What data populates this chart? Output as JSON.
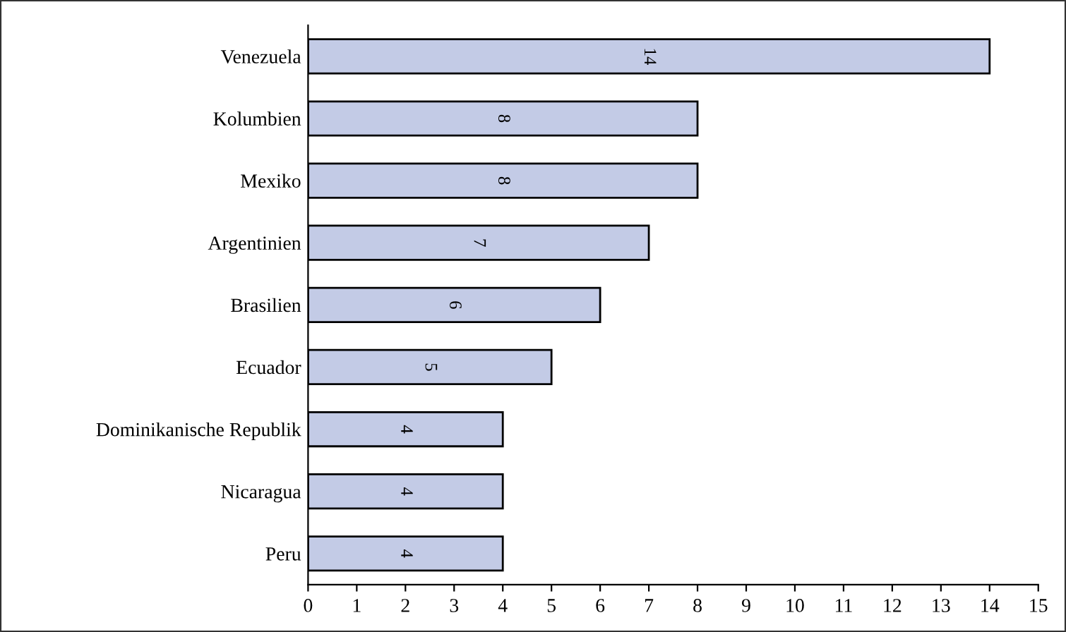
{
  "chart_data": {
    "type": "bar",
    "orientation": "horizontal",
    "categories": [
      "Venezuela",
      "Kolumbien",
      "Mexiko",
      "Argentinien",
      "Brasilien",
      "Ecuador",
      "Dominikanische Republik",
      "Nicaragua",
      "Peru"
    ],
    "values": [
      14,
      8,
      8,
      7,
      6,
      5,
      4,
      4,
      4
    ],
    "color": "#c3cbe6",
    "xlim": [
      0,
      15
    ],
    "xticks": [
      0,
      1,
      2,
      3,
      4,
      5,
      6,
      7,
      8,
      9,
      10,
      11,
      12,
      13,
      14,
      15
    ],
    "data_labels": true,
    "grid": false
  }
}
